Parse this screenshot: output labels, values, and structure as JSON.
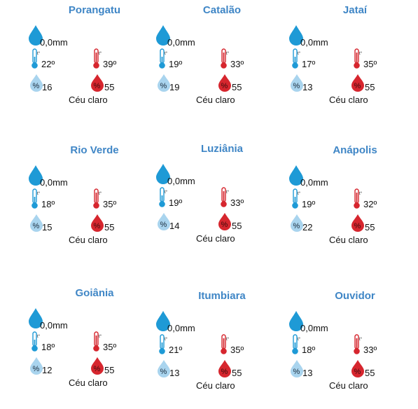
{
  "cities": [
    {
      "name": "Porangatu",
      "rain": "0,0mm",
      "tmin": "22º",
      "tmax": "39º",
      "hmin": "16",
      "hmax": "55",
      "sky": "Céu claro"
    },
    {
      "name": "Catalão",
      "rain": "0,0mm",
      "tmin": "19º",
      "tmax": "33º",
      "hmin": "19",
      "hmax": "55",
      "sky": "Céu claro"
    },
    {
      "name": "Jataí",
      "rain": "0,0mm",
      "tmin": "17º",
      "tmax": "35º",
      "hmin": "13",
      "hmax": "55",
      "sky": "Céu claro"
    },
    {
      "name": "Rio Verde",
      "rain": "0,0mm",
      "tmin": "18º",
      "tmax": "35º",
      "hmin": "15",
      "hmax": "55",
      "sky": "Céu claro"
    },
    {
      "name": "Luziânia",
      "rain": "0,0mm",
      "tmin": "19º",
      "tmax": "33º",
      "hmin": "14",
      "hmax": "55",
      "sky": "Céu claro"
    },
    {
      "name": "Anápolis",
      "rain": "0,0mm",
      "tmin": "19º",
      "tmax": "32º",
      "hmin": "22",
      "hmax": "55",
      "sky": "Céu claro"
    },
    {
      "name": "Goiânia",
      "rain": "0,0mm",
      "tmin": "18º",
      "tmax": "35º",
      "hmin": "12",
      "hmax": "55",
      "sky": "Céu claro"
    },
    {
      "name": "Itumbiara",
      "rain": "0,0mm",
      "tmin": "21º",
      "tmax": "35º",
      "hmin": "13",
      "hmax": "55",
      "sky": "Céu claro"
    },
    {
      "name": "Ouvidor",
      "rain": "0,0mm",
      "tmin": "18º",
      "tmax": "33º",
      "hmin": "13",
      "hmax": "55",
      "sky": "Céu claro"
    }
  ],
  "icons": {
    "rain": "rain-drop-icon",
    "temp_min": "thermometer-cold-icon",
    "temp_max": "thermometer-hot-icon",
    "hum_min": "humidity-low-icon",
    "hum_max": "humidity-high-icon",
    "therm_label": "t°",
    "pct_label": "%"
  },
  "colors": {
    "title": "#3f86c6",
    "rain_drop": "#1e9ad6",
    "cold": "#1e9ad6",
    "hot": "#d6262e",
    "hum_low": "#a9d4ee",
    "hum_high": "#d6262e"
  }
}
